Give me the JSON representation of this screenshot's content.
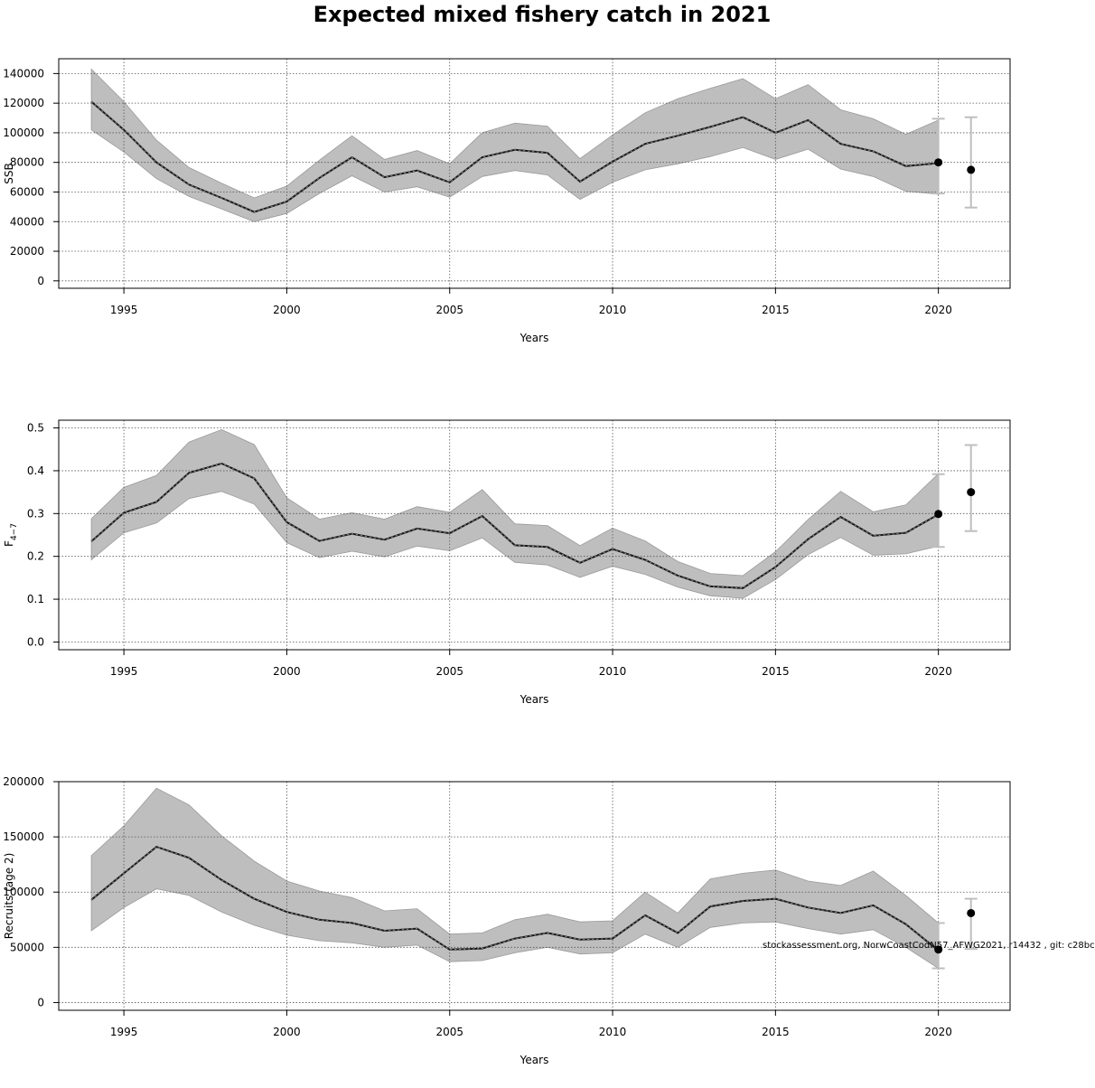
{
  "figure": {
    "title": "Expected mixed fishery catch in 2021",
    "footnote": "stockassessment.org, NorwCoastCodN57_AFWG2021, r14432 , git: c28bc",
    "colors": {
      "band": "#bebebe",
      "band_edge": "#9a9a9a",
      "line": "#1a1a1a",
      "whisker": "#bebebe",
      "grid": "#555555"
    }
  },
  "chart_data": [
    {
      "type": "line",
      "id": "ssb",
      "ylabel": "SSB",
      "xlabel": "Years",
      "xlim": [
        1993,
        2022.2
      ],
      "ylim": [
        -5000,
        150000
      ],
      "xticks": [
        1995,
        2000,
        2005,
        2010,
        2015,
        2020
      ],
      "yticks": [
        0,
        20000,
        40000,
        60000,
        80000,
        100000,
        120000,
        140000
      ],
      "x": [
        1994,
        1995,
        1996,
        1997,
        1998,
        1999,
        2000,
        2001,
        2002,
        2003,
        2004,
        2005,
        2006,
        2007,
        2008,
        2009,
        2010,
        2011,
        2012,
        2013,
        2014,
        2015,
        2016,
        2017,
        2018,
        2019,
        2020
      ],
      "estimate": [
        121000,
        102000,
        80000,
        65000,
        56000,
        46500,
        53500,
        69500,
        83500,
        70000,
        74500,
        66500,
        83500,
        88500,
        86500,
        67000,
        80500,
        92500,
        98000,
        104000,
        110500,
        100000,
        108500,
        92500,
        87500,
        77500,
        79500
      ],
      "lower": [
        102000,
        87000,
        69000,
        57000,
        48500,
        40000,
        45500,
        59000,
        71000,
        60000,
        63500,
        56500,
        70500,
        74500,
        71500,
        55000,
        66500,
        75000,
        79000,
        84000,
        90000,
        82000,
        89000,
        75500,
        70500,
        60500,
        58500
      ],
      "upper": [
        143000,
        121000,
        95000,
        76500,
        66000,
        56000,
        64000,
        81500,
        98000,
        82000,
        88000,
        79000,
        100000,
        106500,
        104500,
        82500,
        98500,
        113500,
        123000,
        130000,
        136500,
        123000,
        132500,
        115500,
        109500,
        99000,
        108500
      ],
      "end_point": {
        "x": 2020,
        "value": 80000,
        "lower": 59000,
        "upper": 109500
      },
      "forecast": {
        "x": 2021,
        "value": 75000,
        "lower": 49500,
        "upper": 110500
      }
    },
    {
      "type": "line",
      "id": "fbar",
      "ylabel": "F",
      "ylabel_sub": "4−7",
      "xlabel": "Years",
      "xlim": [
        1993,
        2022.2
      ],
      "ylim": [
        -0.018,
        0.518
      ],
      "xticks": [
        1995,
        2000,
        2005,
        2010,
        2015,
        2020
      ],
      "yticks": [
        0.0,
        0.1,
        0.2,
        0.3,
        0.4,
        0.5
      ],
      "x": [
        1994,
        1995,
        1996,
        1997,
        1998,
        1999,
        2000,
        2001,
        2002,
        2003,
        2004,
        2005,
        2006,
        2007,
        2008,
        2009,
        2010,
        2011,
        2012,
        2013,
        2014,
        2015,
        2016,
        2017,
        2018,
        2019,
        2020
      ],
      "estimate": [
        0.235,
        0.302,
        0.327,
        0.395,
        0.417,
        0.382,
        0.28,
        0.236,
        0.253,
        0.239,
        0.265,
        0.254,
        0.294,
        0.226,
        0.222,
        0.185,
        0.217,
        0.192,
        0.155,
        0.13,
        0.126,
        0.175,
        0.24,
        0.292,
        0.248,
        0.255,
        0.298
      ],
      "lower": [
        0.192,
        0.255,
        0.278,
        0.335,
        0.352,
        0.322,
        0.232,
        0.197,
        0.212,
        0.199,
        0.224,
        0.213,
        0.243,
        0.186,
        0.18,
        0.151,
        0.177,
        0.158,
        0.128,
        0.108,
        0.102,
        0.146,
        0.204,
        0.244,
        0.203,
        0.206,
        0.224
      ],
      "upper": [
        0.288,
        0.361,
        0.389,
        0.467,
        0.496,
        0.461,
        0.337,
        0.287,
        0.302,
        0.287,
        0.316,
        0.303,
        0.356,
        0.276,
        0.272,
        0.225,
        0.266,
        0.236,
        0.188,
        0.16,
        0.155,
        0.211,
        0.286,
        0.352,
        0.304,
        0.32,
        0.393
      ],
      "end_point": {
        "x": 2020,
        "value": 0.299,
        "lower": 0.222,
        "upper": 0.392
      },
      "forecast": {
        "x": 2021,
        "value": 0.35,
        "lower": 0.259,
        "upper": 0.46
      }
    },
    {
      "type": "line",
      "id": "recruits",
      "ylabel": "Recruits (age 2)",
      "xlabel": "Years",
      "xlim": [
        1993,
        2022.2
      ],
      "ylim": [
        -7000,
        200000
      ],
      "xticks": [
        1995,
        2000,
        2005,
        2010,
        2015,
        2020
      ],
      "yticks": [
        0,
        50000,
        100000,
        150000,
        200000
      ],
      "x": [
        1994,
        1995,
        1996,
        1997,
        1998,
        1999,
        2000,
        2001,
        2002,
        2003,
        2004,
        2005,
        2006,
        2007,
        2008,
        2009,
        2010,
        2011,
        2012,
        2013,
        2014,
        2015,
        2016,
        2017,
        2018,
        2019,
        2020
      ],
      "estimate": [
        93000,
        117000,
        141000,
        131000,
        111000,
        94000,
        82000,
        75000,
        72000,
        65000,
        67000,
        48000,
        49000,
        58000,
        63000,
        57000,
        58000,
        79000,
        63000,
        87000,
        92000,
        94000,
        86000,
        81000,
        88000,
        71000,
        47000
      ],
      "lower": [
        65000,
        86000,
        103000,
        97000,
        82000,
        70000,
        61000,
        56000,
        54000,
        50000,
        52000,
        37000,
        38000,
        45000,
        50000,
        44000,
        45000,
        62000,
        50000,
        68000,
        72000,
        73000,
        67000,
        62000,
        66000,
        50000,
        31000
      ],
      "upper": [
        133000,
        160000,
        194000,
        179000,
        151000,
        128000,
        110000,
        101000,
        95000,
        83000,
        85000,
        62000,
        63000,
        75000,
        80000,
        73000,
        74000,
        100000,
        81000,
        112000,
        117000,
        120000,
        110000,
        106000,
        119000,
        97000,
        72000
      ],
      "end_point": {
        "x": 2020,
        "value": 48000,
        "lower": 31000,
        "upper": 72000
      },
      "forecast": {
        "x": 2021,
        "value": 81000,
        "lower": 48500,
        "upper": 94000
      }
    }
  ]
}
